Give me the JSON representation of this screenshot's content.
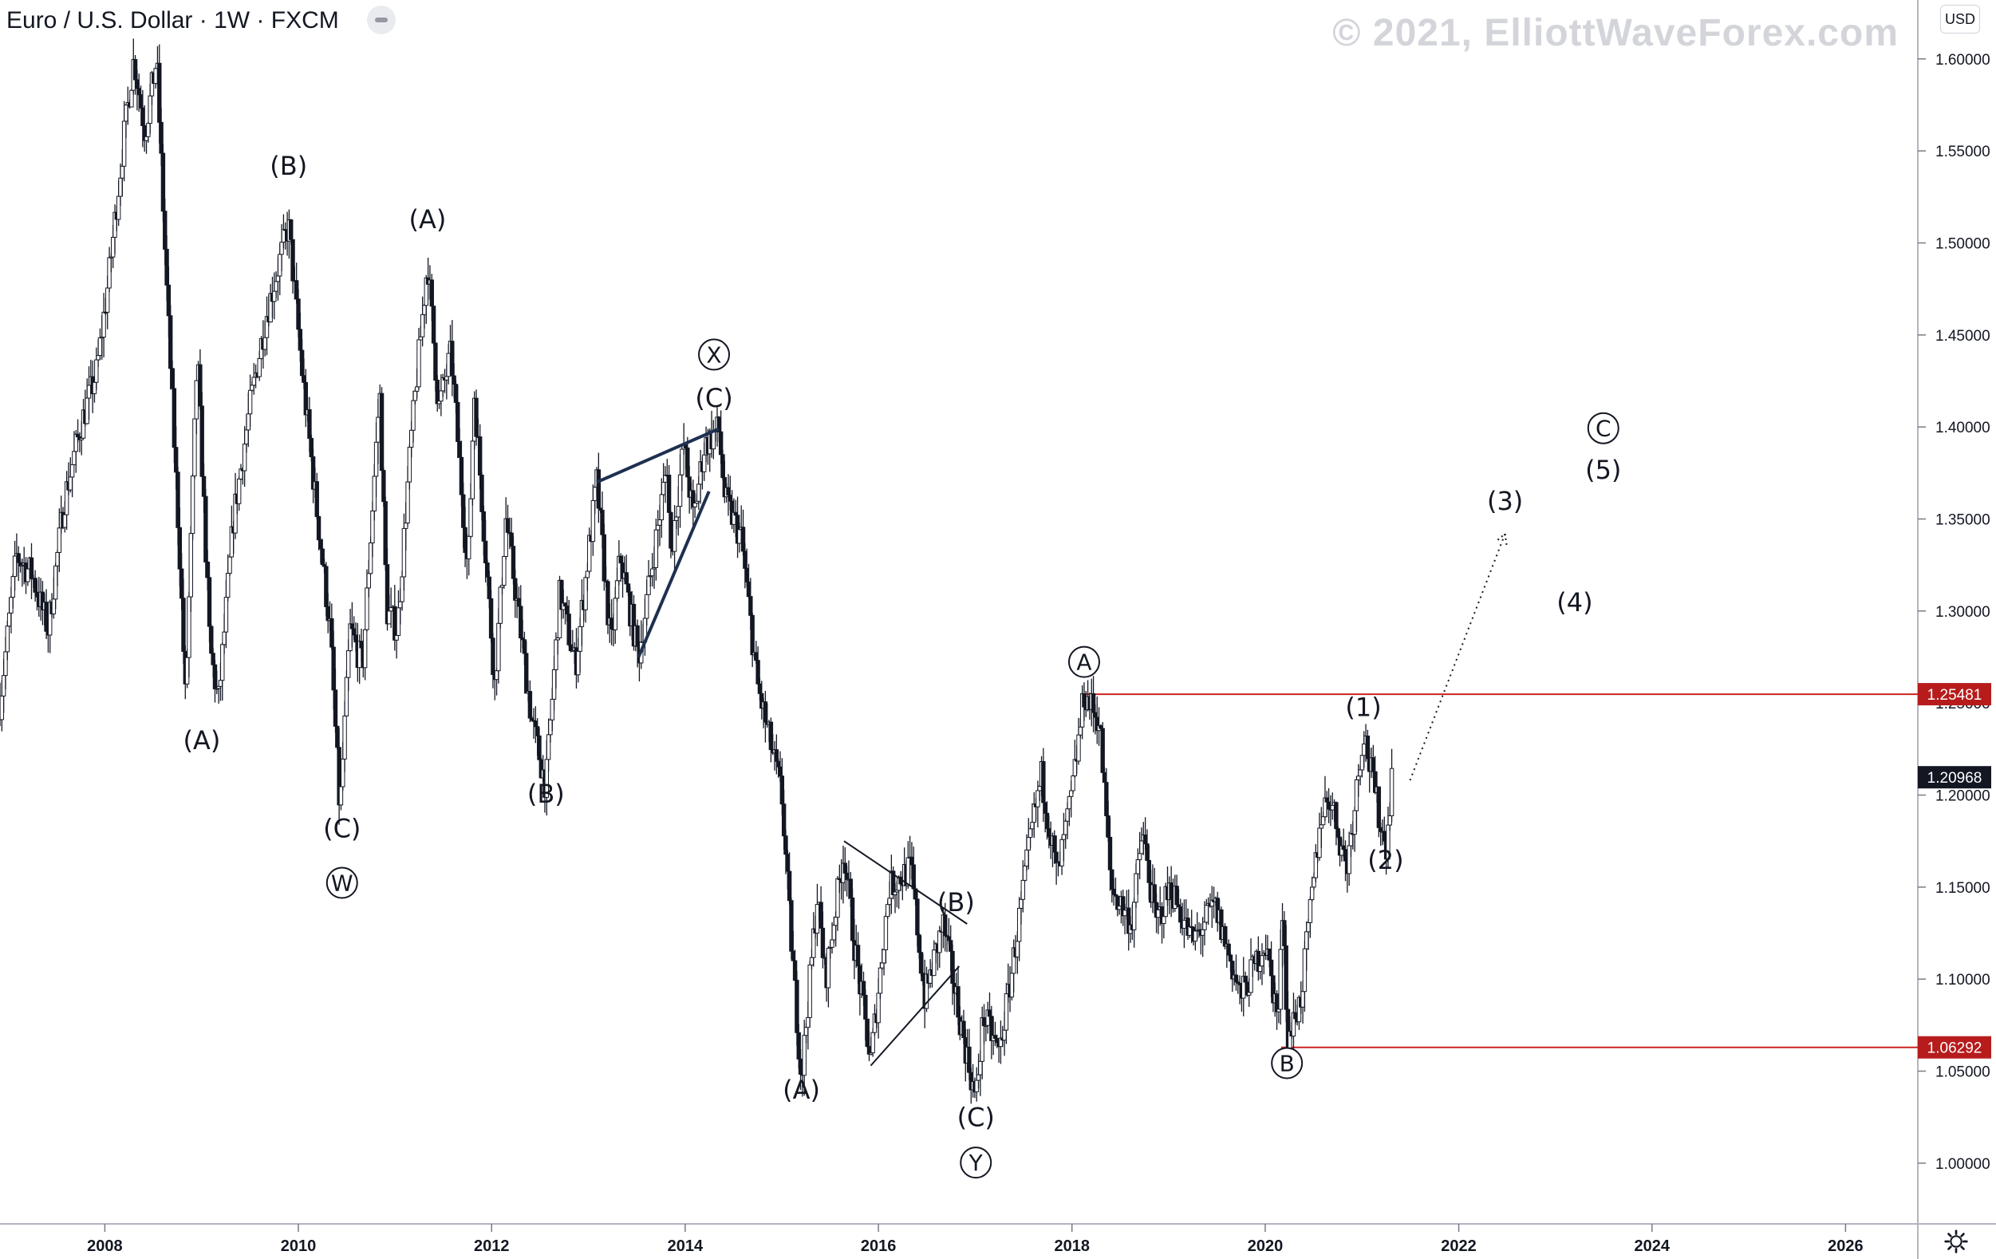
{
  "header": {
    "symbol": "Euro / U.S. Dollar",
    "separator": " · ",
    "interval": "1W",
    "exchange": "FXCM"
  },
  "watermark": "© 2021, ElliottWaveForex.com",
  "currency_button": "USD",
  "icons": {
    "collapse": "minus-icon",
    "settings": "gear-icon"
  },
  "colors": {
    "candle": "#131722",
    "level_line": "#cc2222",
    "level_label_bg": "#b71c1c",
    "last_price_bg": "#131722",
    "trendline_bold": "#1e3050",
    "axis_text": "#131722",
    "watermark": "#d3d5da"
  },
  "chart_data": {
    "type": "candlestick",
    "title": "Euro / U.S. Dollar · 1W · FXCM",
    "x_axis": {
      "type": "date",
      "range": [
        "2006-12-01",
        "2026-10-01"
      ],
      "ticks": [
        "2008",
        "2010",
        "2012",
        "2014",
        "2016",
        "2018",
        "2020",
        "2022",
        "2024",
        "2026"
      ]
    },
    "y_axis": {
      "position": "right",
      "range": [
        0.967,
        1.632
      ],
      "ticks": [
        1.0,
        1.05,
        1.1,
        1.15,
        1.2,
        1.25,
        1.3,
        1.35,
        1.4,
        1.45,
        1.5,
        1.55,
        1.6
      ],
      "tick_labels": [
        "1.00000",
        "1.05000",
        "1.10000",
        "1.15000",
        "1.20000",
        "1.25000",
        "1.30000",
        "1.35000",
        "1.40000",
        "1.45000",
        "1.50000",
        "1.55000",
        "1.60000"
      ]
    },
    "price_path": [
      [
        "2006-12-01",
        1.25
      ],
      [
        "2007-02-01",
        1.33
      ],
      [
        "2007-04-01",
        1.32
      ],
      [
        "2007-06-01",
        1.29
      ],
      [
        "2007-08-01",
        1.36
      ],
      [
        "2007-10-01",
        1.4
      ],
      [
        "2007-12-01",
        1.43
      ],
      [
        "2008-01-15",
        1.48
      ],
      [
        "2008-03-15",
        1.56
      ],
      [
        "2008-04-20",
        1.6
      ],
      [
        "2008-06-01",
        1.56
      ],
      [
        "2008-07-15",
        1.6
      ],
      [
        "2008-08-20",
        1.48
      ],
      [
        "2008-10-10",
        1.33
      ],
      [
        "2008-11-01",
        1.25
      ],
      [
        "2008-12-15",
        1.44
      ],
      [
        "2009-02-01",
        1.28
      ],
      [
        "2009-03-05",
        1.25
      ],
      [
        "2009-05-01",
        1.35
      ],
      [
        "2009-07-01",
        1.41
      ],
      [
        "2009-09-01",
        1.46
      ],
      [
        "2009-11-25",
        1.51
      ],
      [
        "2010-01-15",
        1.43
      ],
      [
        "2010-03-15",
        1.35
      ],
      [
        "2010-05-01",
        1.29
      ],
      [
        "2010-06-07",
        1.19
      ],
      [
        "2010-07-15",
        1.29
      ],
      [
        "2010-09-01",
        1.27
      ],
      [
        "2010-11-04",
        1.42
      ],
      [
        "2010-12-01",
        1.3
      ],
      [
        "2011-01-10",
        1.29
      ],
      [
        "2011-03-01",
        1.39
      ],
      [
        "2011-05-04",
        1.49
      ],
      [
        "2011-06-15",
        1.41
      ],
      [
        "2011-08-01",
        1.44
      ],
      [
        "2011-10-04",
        1.32
      ],
      [
        "2011-10-27",
        1.42
      ],
      [
        "2012-01-13",
        1.26
      ],
      [
        "2012-02-24",
        1.35
      ],
      [
        "2012-04-01",
        1.31
      ],
      [
        "2012-06-01",
        1.24
      ],
      [
        "2012-07-24",
        1.205
      ],
      [
        "2012-09-15",
        1.31
      ],
      [
        "2012-11-13",
        1.27
      ],
      [
        "2013-02-01",
        1.37
      ],
      [
        "2013-03-27",
        1.28
      ],
      [
        "2013-05-01",
        1.33
      ],
      [
        "2013-07-09",
        1.275
      ],
      [
        "2013-10-25",
        1.38
      ],
      [
        "2013-11-07",
        1.33
      ],
      [
        "2013-12-27",
        1.39
      ],
      [
        "2014-02-01",
        1.35
      ],
      [
        "2014-03-15",
        1.39
      ],
      [
        "2014-05-08",
        1.399
      ],
      [
        "2014-06-01",
        1.36
      ],
      [
        "2014-08-01",
        1.34
      ],
      [
        "2014-10-01",
        1.26
      ],
      [
        "2015-01-01",
        1.2
      ],
      [
        "2015-02-01",
        1.13
      ],
      [
        "2015-03-16",
        1.046
      ],
      [
        "2015-05-15",
        1.145
      ],
      [
        "2015-06-15",
        1.1
      ],
      [
        "2015-08-24",
        1.17
      ],
      [
        "2015-10-01",
        1.12
      ],
      [
        "2015-12-03",
        1.055
      ],
      [
        "2016-02-11",
        1.15
      ],
      [
        "2016-05-03",
        1.16
      ],
      [
        "2016-06-24",
        1.09
      ],
      [
        "2016-09-01",
        1.13
      ],
      [
        "2016-11-15",
        1.07
      ],
      [
        "2017-01-03",
        1.034
      ],
      [
        "2017-02-01",
        1.08
      ],
      [
        "2017-04-01",
        1.06
      ],
      [
        "2017-05-15",
        1.1
      ],
      [
        "2017-08-01",
        1.18
      ],
      [
        "2017-09-08",
        1.21
      ],
      [
        "2017-11-07",
        1.155
      ],
      [
        "2018-01-01",
        1.2
      ],
      [
        "2018-02-16",
        1.255
      ],
      [
        "2018-04-15",
        1.24
      ],
      [
        "2018-05-29",
        1.15
      ],
      [
        "2018-08-15",
        1.13
      ],
      [
        "2018-09-24",
        1.18
      ],
      [
        "2018-11-15",
        1.13
      ],
      [
        "2019-01-10",
        1.15
      ],
      [
        "2019-04-01",
        1.12
      ],
      [
        "2019-06-25",
        1.14
      ],
      [
        "2019-10-01",
        1.09
      ],
      [
        "2019-12-31",
        1.12
      ],
      [
        "2020-02-20",
        1.078
      ],
      [
        "2020-03-09",
        1.149
      ],
      [
        "2020-03-23",
        1.064
      ],
      [
        "2020-05-15",
        1.09
      ],
      [
        "2020-07-31",
        1.19
      ],
      [
        "2020-09-01",
        1.2
      ],
      [
        "2020-11-04",
        1.16
      ],
      [
        "2021-01-06",
        1.235
      ],
      [
        "2021-03-31",
        1.17
      ],
      [
        "2021-04-23",
        1.209
      ]
    ],
    "last_price": {
      "value": 1.20968,
      "label": "1.20968"
    },
    "levels": [
      {
        "value": 1.25481,
        "label": "1.25481",
        "from": "2018-02-01"
      },
      {
        "value": 1.06292,
        "label": "1.06292",
        "from": "2020-03-01"
      }
    ],
    "trendlines": [
      {
        "style": "bold",
        "points": [
          [
            "2013-02-01",
            1.37
          ],
          [
            "2014-05-08",
            1.399
          ]
        ]
      },
      {
        "style": "bold",
        "points": [
          [
            "2013-07-09",
            1.275
          ],
          [
            "2014-04-01",
            1.365
          ]
        ]
      },
      {
        "style": "thin",
        "points": [
          [
            "2015-08-24",
            1.175
          ],
          [
            "2016-12-01",
            1.13
          ]
        ]
      },
      {
        "style": "thin",
        "points": [
          [
            "2015-12-03",
            1.053
          ],
          [
            "2016-11-01",
            1.107
          ]
        ]
      },
      {
        "style": "dotted-arrow",
        "points": [
          [
            "2021-07-01",
            1.208
          ],
          [
            "2022-06-25",
            1.342
          ]
        ]
      }
    ],
    "annotations": [
      {
        "text": "(A)",
        "x": "2009-01-01",
        "y": 1.225,
        "circled": false
      },
      {
        "text": "(B)",
        "x": "2009-11-25",
        "y": 1.537,
        "circled": false
      },
      {
        "text": "(C)",
        "x": "2010-06-15",
        "y": 1.177,
        "circled": false
      },
      {
        "text": "W",
        "x": "2010-06-15",
        "y": 1.148,
        "circled": true
      },
      {
        "text": "(A)",
        "x": "2011-05-04",
        "y": 1.508,
        "circled": false
      },
      {
        "text": "(B)",
        "x": "2012-07-24",
        "y": 1.196,
        "circled": false
      },
      {
        "text": "X",
        "x": "2014-04-20",
        "y": 1.435,
        "circled": true
      },
      {
        "text": "(C)",
        "x": "2014-04-20",
        "y": 1.411,
        "circled": false
      },
      {
        "text": "(A)",
        "x": "2015-03-16",
        "y": 1.035,
        "circled": false
      },
      {
        "text": "(B)",
        "x": "2016-10-20",
        "y": 1.137,
        "circled": false
      },
      {
        "text": "(C)",
        "x": "2017-01-03",
        "y": 1.02,
        "circled": false
      },
      {
        "text": "Y",
        "x": "2017-01-03",
        "y": 0.996,
        "circled": true
      },
      {
        "text": "A",
        "x": "2018-02-16",
        "y": 1.268,
        "circled": true
      },
      {
        "text": "B",
        "x": "2020-03-23",
        "y": 1.05,
        "circled": true
      },
      {
        "text": "(1)",
        "x": "2021-01-06",
        "y": 1.243,
        "circled": false
      },
      {
        "text": "(2)",
        "x": "2021-03-31",
        "y": 1.16,
        "circled": false
      },
      {
        "text": "(3)",
        "x": "2022-06-25",
        "y": 1.355,
        "circled": false
      },
      {
        "text": "(4)",
        "x": "2023-03-15",
        "y": 1.3,
        "circled": false
      },
      {
        "text": "C",
        "x": "2023-07-01",
        "y": 1.395,
        "circled": true
      },
      {
        "text": "(5)",
        "x": "2023-07-01",
        "y": 1.372,
        "circled": false
      }
    ]
  }
}
